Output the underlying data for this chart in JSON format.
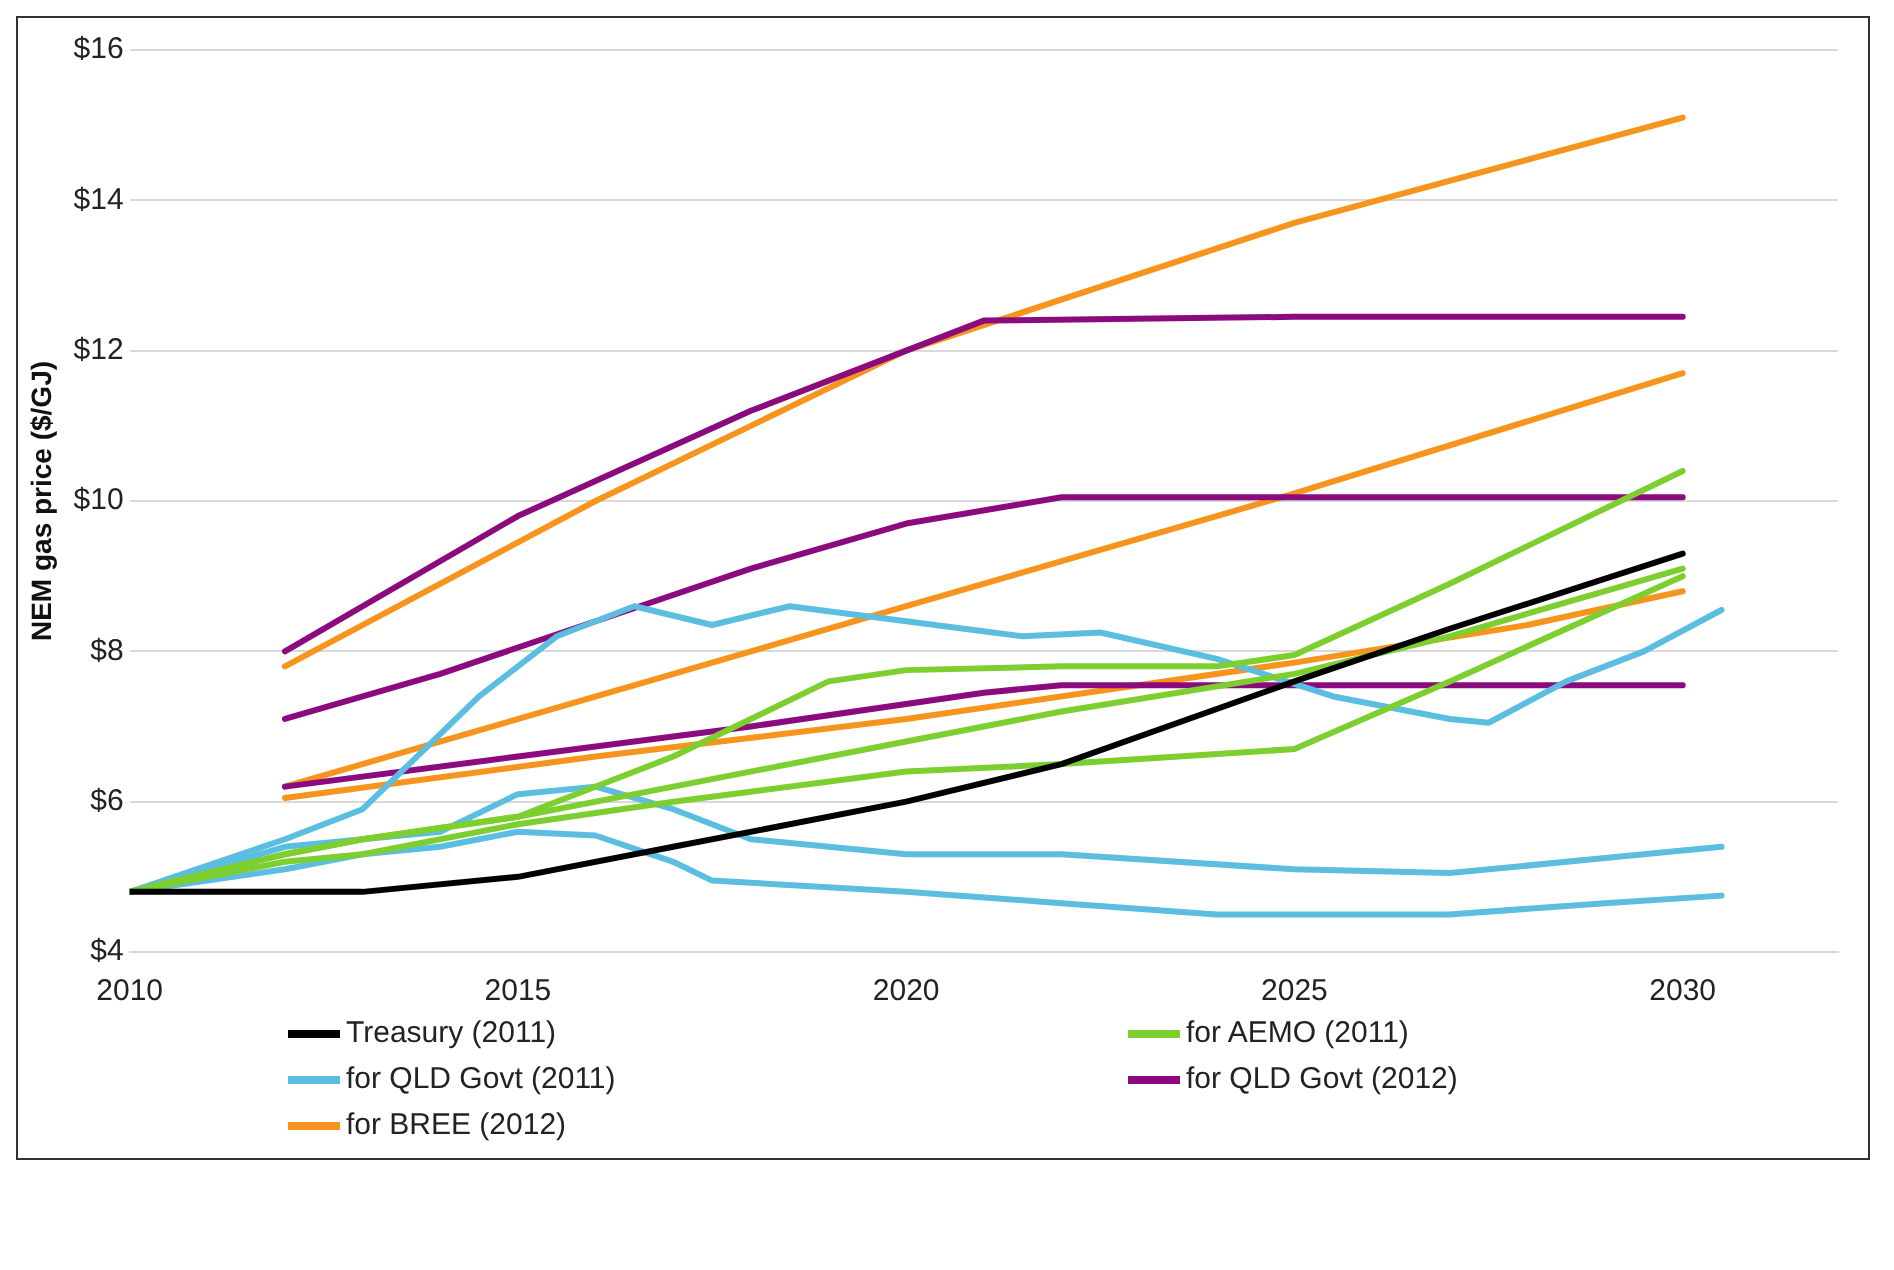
{
  "chart_data": {
    "type": "line",
    "ylabel": "NEM gas price ($/GJ)",
    "xlim": [
      2010,
      2032
    ],
    "xticks": [
      2010,
      2015,
      2020,
      2025,
      2030
    ],
    "ylim": [
      4,
      16
    ],
    "yticks": [
      {
        "value": 4,
        "label": "$4"
      },
      {
        "value": 6,
        "label": "$6"
      },
      {
        "value": 8,
        "label": "$8"
      },
      {
        "value": 10,
        "label": "$10"
      },
      {
        "value": 12,
        "label": "$12"
      },
      {
        "value": 14,
        "label": "$14"
      },
      {
        "value": 16,
        "label": "$16"
      }
    ],
    "grid": "y",
    "legend": "bottom",
    "marker": "none",
    "line_style": "solid",
    "series": [
      {
        "name": "Treasury (2011)",
        "color": "#000000",
        "x": [
          2010,
          2013,
          2015,
          2017,
          2020,
          2022,
          2025,
          2027,
          2030
        ],
        "values": [
          4.8,
          4.8,
          5.0,
          5.4,
          6.0,
          6.5,
          7.6,
          8.3,
          9.3
        ]
      },
      {
        "name": "for AEMO (2011)",
        "color": "#7dcf2f",
        "x": [
          2010,
          2012,
          2013,
          2015,
          2017,
          2019,
          2020,
          2022,
          2024,
          2025,
          2027,
          2030
        ],
        "values": [
          4.8,
          5.3,
          5.5,
          5.8,
          6.6,
          7.6,
          7.75,
          7.8,
          7.8,
          7.95,
          8.9,
          10.4
        ]
      },
      {
        "color": "#7dcf2f",
        "x": [
          2010,
          2012,
          2013,
          2015,
          2017,
          2020,
          2022,
          2025,
          2027,
          2030
        ],
        "values": [
          4.8,
          5.3,
          5.5,
          5.8,
          6.2,
          6.8,
          7.2,
          7.7,
          8.2,
          9.1
        ]
      },
      {
        "color": "#7dcf2f",
        "x": [
          2010,
          2012,
          2013,
          2015,
          2017,
          2020,
          2022,
          2025,
          2027,
          2030
        ],
        "values": [
          4.8,
          5.2,
          5.3,
          5.7,
          6.0,
          6.4,
          6.5,
          6.7,
          7.6,
          9.0
        ]
      },
      {
        "name": "for QLD Govt (2011)",
        "color": "#5bbde0",
        "x": [
          2010,
          2012,
          2013,
          2013.6,
          2014.5,
          2015.5,
          2016.5,
          2017.5,
          2018.5,
          2020,
          2021.5,
          2022.5,
          2024,
          2025.5,
          2027,
          2027.5,
          2028.5,
          2029.5,
          2030.5
        ],
        "values": [
          4.8,
          5.5,
          5.9,
          6.5,
          7.4,
          8.2,
          8.6,
          8.35,
          8.6,
          8.4,
          8.2,
          8.25,
          7.9,
          7.4,
          7.1,
          7.05,
          7.6,
          8.0,
          8.55
        ]
      },
      {
        "color": "#5bbde0",
        "x": [
          2010,
          2012,
          2013,
          2014,
          2015,
          2016,
          2017,
          2018,
          2020,
          2022,
          2025,
          2027,
          2029,
          2030.5
        ],
        "values": [
          4.8,
          5.4,
          5.5,
          5.6,
          6.1,
          6.2,
          5.9,
          5.5,
          5.3,
          5.3,
          5.1,
          5.05,
          5.25,
          5.4
        ]
      },
      {
        "color": "#5bbde0",
        "x": [
          2010,
          2012,
          2013,
          2014,
          2015,
          2016,
          2017,
          2017.5,
          2020,
          2022,
          2024,
          2027,
          2029,
          2030.5
        ],
        "values": [
          4.8,
          5.1,
          5.3,
          5.4,
          5.6,
          5.55,
          5.2,
          4.95,
          4.8,
          4.65,
          4.5,
          4.5,
          4.65,
          4.75
        ]
      },
      {
        "name": "for QLD Govt (2012)",
        "color": "#8b0b7e",
        "x": [
          2012,
          2015,
          2018,
          2020,
          2021,
          2025,
          2030
        ],
        "values": [
          8.0,
          9.8,
          11.2,
          12.0,
          12.4,
          12.45,
          12.45
        ]
      },
      {
        "color": "#8b0b7e",
        "x": [
          2012,
          2014,
          2016,
          2018,
          2020,
          2022,
          2025,
          2030
        ],
        "values": [
          7.1,
          7.7,
          8.4,
          9.1,
          9.7,
          10.05,
          10.05,
          10.05
        ]
      },
      {
        "color": "#8b0b7e",
        "x": [
          2012,
          2015,
          2018,
          2021,
          2022,
          2030
        ],
        "values": [
          6.2,
          6.6,
          7.0,
          7.45,
          7.55,
          7.55
        ]
      },
      {
        "name": "for BREE (2012)",
        "color": "#f7941d",
        "x": [
          2012,
          2016,
          2020,
          2025,
          2030
        ],
        "values": [
          7.8,
          10.0,
          12.0,
          13.7,
          15.1
        ]
      },
      {
        "color": "#f7941d",
        "x": [
          2012,
          2020,
          2025,
          2030
        ],
        "values": [
          6.2,
          8.6,
          10.1,
          11.7
        ]
      },
      {
        "color": "#f7941d",
        "x": [
          2012,
          2016,
          2020,
          2025,
          2028,
          2030
        ],
        "values": [
          6.05,
          6.6,
          7.1,
          7.85,
          8.35,
          8.8
        ]
      }
    ]
  }
}
